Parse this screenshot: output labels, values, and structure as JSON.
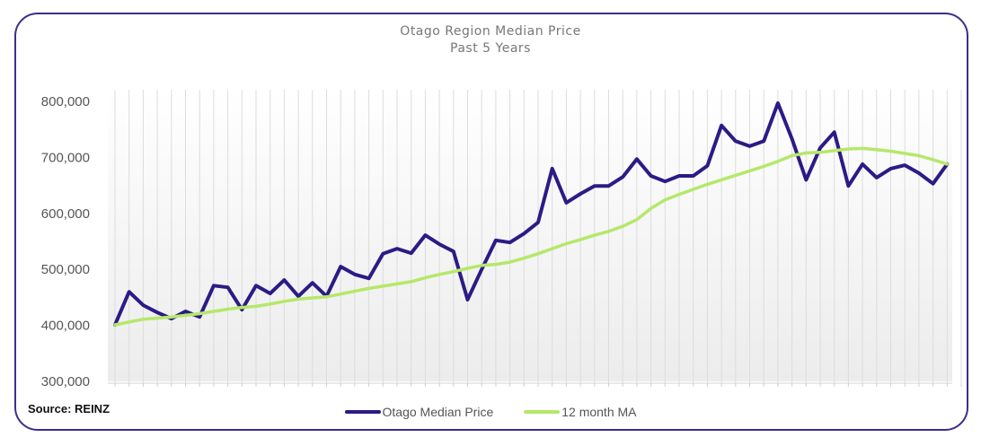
{
  "chart_data": {
    "type": "line",
    "title": "Otago Region Median Price",
    "subtitle": "Past 5 Years",
    "xlabel": "",
    "ylabel": "",
    "ylim": [
      300000,
      800000
    ],
    "yticks": [
      300000,
      400000,
      500000,
      600000,
      700000,
      800000
    ],
    "ytick_labels": [
      "300,000",
      "400,000",
      "500,000",
      "600,000",
      "700,000",
      "800,000"
    ],
    "grid": "vertical lines per month",
    "legend_position": "bottom",
    "series": [
      {
        "name": "Otago Median Price",
        "color": "#2b1b86",
        "values": [
          401000,
          460000,
          436000,
          423000,
          412000,
          425000,
          415000,
          471000,
          468000,
          428000,
          471000,
          457000,
          481000,
          452000,
          476000,
          452000,
          505000,
          491000,
          484000,
          528000,
          537000,
          529000,
          561000,
          545000,
          532000,
          446000,
          500000,
          552000,
          548000,
          564000,
          584000,
          680000,
          619000,
          635000,
          649000,
          649000,
          665000,
          697000,
          667000,
          657000,
          667000,
          667000,
          685000,
          757000,
          729000,
          720000,
          729000,
          797000,
          733000,
          660000,
          717000,
          745000,
          649000,
          688000,
          664000,
          680000,
          686000,
          672000,
          653000,
          688000
        ]
      },
      {
        "name": "12 month MA",
        "color": "#b5e86a",
        "values": [
          401000,
          406000,
          411000,
          413000,
          415000,
          418000,
          421000,
          425000,
          429000,
          432000,
          434000,
          438000,
          443000,
          447000,
          449000,
          451000,
          456000,
          461000,
          466000,
          470000,
          474000,
          478000,
          485000,
          491000,
          496000,
          502000,
          507000,
          509000,
          513000,
          520000,
          528000,
          537000,
          546000,
          553000,
          561000,
          568000,
          577000,
          589000,
          609000,
          624000,
          634000,
          643000,
          652000,
          660000,
          668000,
          676000,
          684000,
          693000,
          703000,
          708000,
          709000,
          712000,
          715000,
          716000,
          714000,
          711000,
          707000,
          703000,
          696000,
          688000
        ]
      }
    ]
  },
  "source": "Source: REINZ",
  "legend": [
    {
      "label": "Otago Median Price",
      "color": "#2b1b86"
    },
    {
      "label": "12 month MA",
      "color": "#b5e86a"
    }
  ]
}
